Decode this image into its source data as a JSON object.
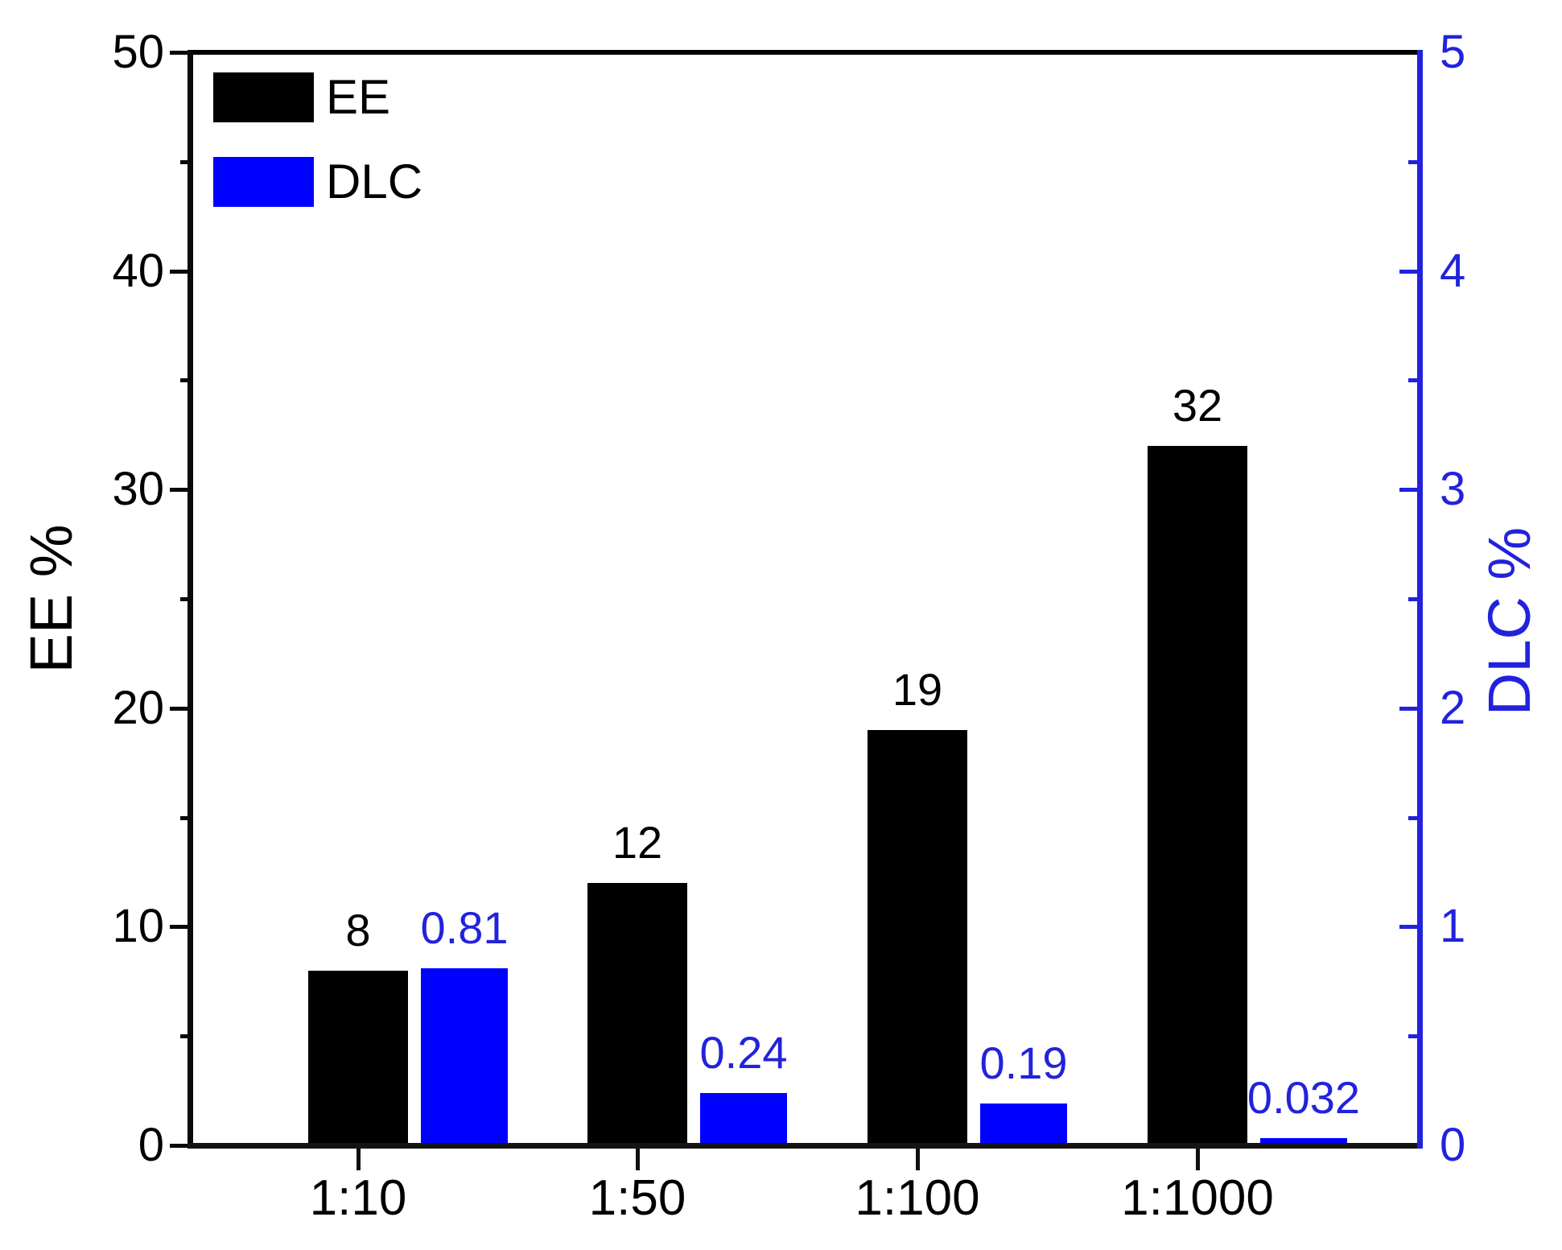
{
  "chart_data": {
    "type": "bar",
    "categories": [
      "1:10",
      "1:50",
      "1:100",
      "1:1000"
    ],
    "series": [
      {
        "name": "EE",
        "axis": "left",
        "color": "#000000",
        "values": [
          8,
          12,
          19,
          32
        ],
        "value_labels": [
          "8",
          "12",
          "19",
          "32"
        ]
      },
      {
        "name": "DLC",
        "axis": "right",
        "color": "#0000ff",
        "values": [
          0.81,
          0.24,
          0.19,
          0.032
        ],
        "value_labels": [
          "0.81",
          "0.24",
          "0.19",
          "0.032"
        ]
      }
    ],
    "left_axis": {
      "title": "EE %",
      "min": 0,
      "max": 50,
      "major_ticks": [
        0,
        10,
        20,
        30,
        40,
        50
      ],
      "major_tick_labels": [
        "0",
        "10",
        "20",
        "30",
        "40",
        "50"
      ],
      "minor_ticks": [
        5,
        15,
        25,
        35,
        45
      ],
      "color": "#000000"
    },
    "right_axis": {
      "title": "DLC %",
      "min": 0,
      "max": 5,
      "major_ticks": [
        0,
        1,
        2,
        3,
        4,
        5
      ],
      "major_tick_labels": [
        "0",
        "1",
        "2",
        "3",
        "4",
        "5"
      ],
      "minor_ticks": [
        0.5,
        1.5,
        2.5,
        3.5,
        4.5
      ],
      "color": "#2222dd"
    },
    "legend": [
      {
        "label": "EE",
        "color": "#000000"
      },
      {
        "label": "DLC",
        "color": "#0000ff"
      }
    ],
    "grid": false,
    "legend_position": "top-left",
    "background": "#ffffff"
  }
}
